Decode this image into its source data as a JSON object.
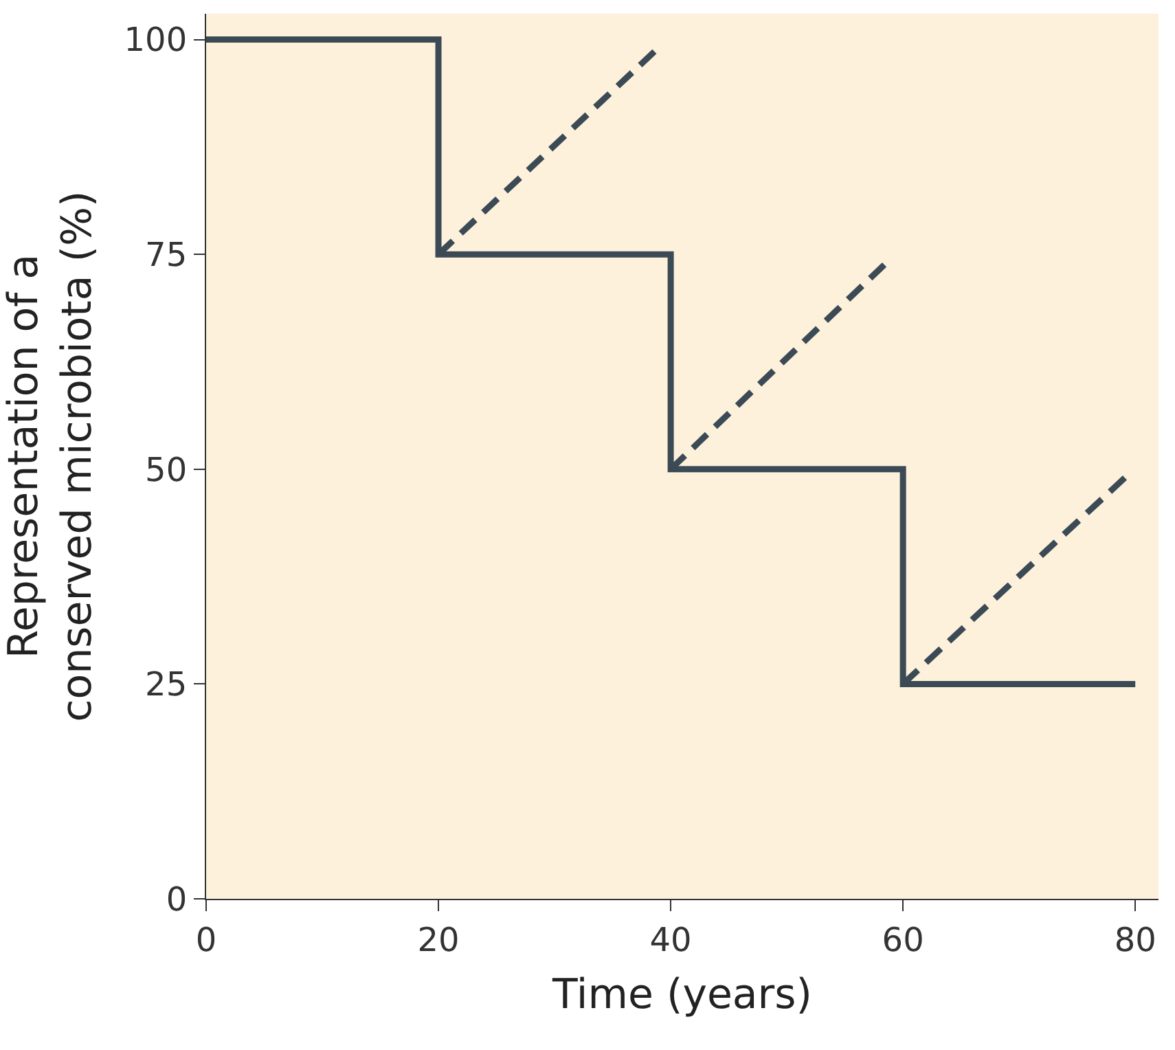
{
  "chart_data": {
    "type": "step",
    "xlabel": "Time (years)",
    "ylabel": "Representation of a conserved microbiota (%)",
    "xlim": [
      0,
      82
    ],
    "ylim": [
      0,
      103
    ],
    "xticks": [
      0,
      20,
      40,
      60,
      80
    ],
    "yticks": [
      0,
      25,
      50,
      75,
      100
    ],
    "grid": false,
    "legend": false,
    "series": [
      {
        "color": "#3b4a54",
        "line_style": "solid",
        "x": [
          0,
          20,
          40,
          60,
          80
        ],
        "values": [
          100,
          75,
          50,
          25,
          25
        ]
      },
      {
        "type": "line",
        "color": "#3b4a54",
        "line_style": "dashed",
        "x": [
          20,
          38.6
        ],
        "values": [
          75,
          98.6
        ]
      },
      {
        "type": "line",
        "color": "#3b4a54",
        "line_style": "dashed",
        "x": [
          40,
          58.4
        ],
        "values": [
          50,
          73.8
        ]
      },
      {
        "type": "line",
        "color": "#3b4a54",
        "line_style": "dashed",
        "x": [
          60,
          79.1
        ],
        "values": [
          25,
          49
        ]
      }
    ]
  }
}
